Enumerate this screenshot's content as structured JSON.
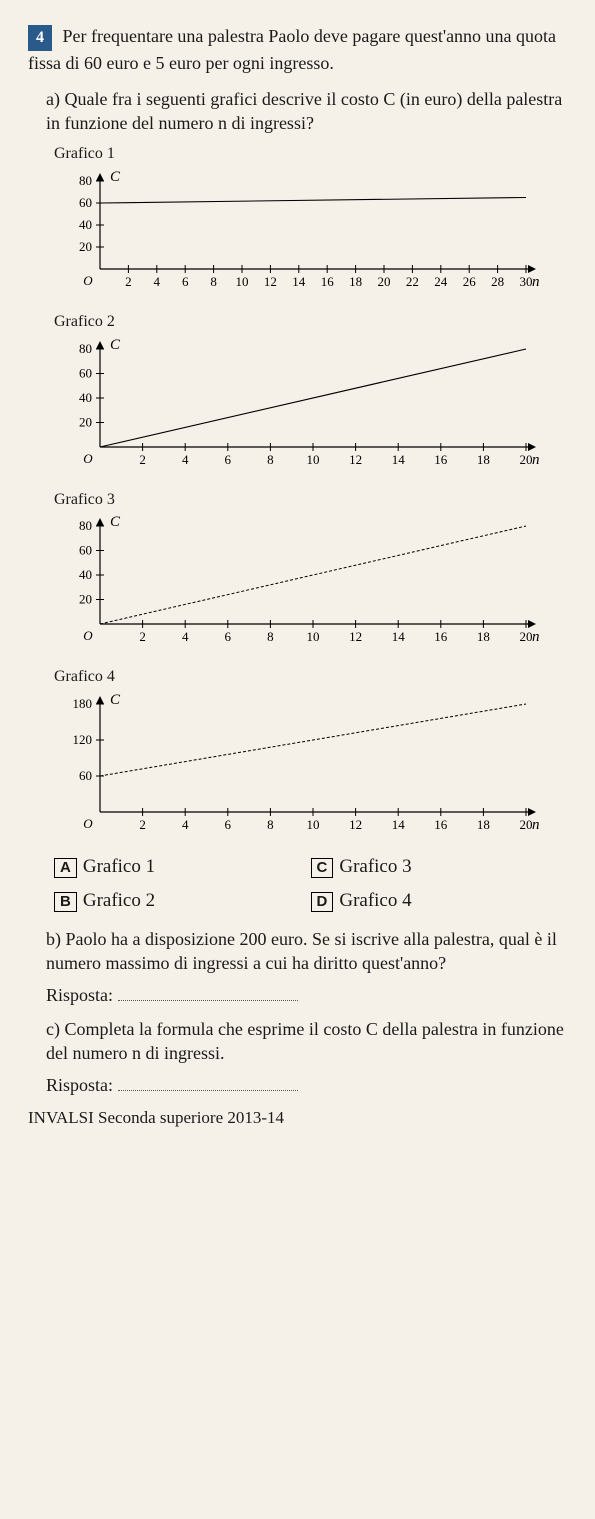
{
  "question_number": "4",
  "intro_text": "Per frequentare una palestra Paolo deve pagare quest'anno una quota fissa di 60 euro e 5 euro per ogni ingresso.",
  "part_a": {
    "label": "a)",
    "text": "Quale fra i seguenti grafici descrive il costo C (in euro) della palestra in funzione del numero n di ingressi?"
  },
  "charts": {
    "axis_color": "#000000",
    "background": "#f5f0e8",
    "y_label": "C",
    "x_label": "n",
    "chart1": {
      "title": "Grafico 1",
      "xlim": [
        0,
        30
      ],
      "xtick_step": 2,
      "ylim": [
        0,
        80
      ],
      "ytick_step": 20,
      "y_ticks": [
        20,
        40,
        60,
        80
      ],
      "line": {
        "x1": 0,
        "y1": 60,
        "x2": 30,
        "y2": 65,
        "style": "solid"
      }
    },
    "chart2": {
      "title": "Grafico 2",
      "xlim": [
        0,
        20
      ],
      "xtick_step": 2,
      "ylim": [
        0,
        80
      ],
      "ytick_step": 20,
      "y_ticks": [
        20,
        40,
        60,
        80
      ],
      "line": {
        "x1": 0,
        "y1": 0,
        "x2": 20,
        "y2": 80,
        "style": "solid"
      }
    },
    "chart3": {
      "title": "Grafico 3",
      "xlim": [
        0,
        20
      ],
      "xtick_step": 2,
      "ylim": [
        0,
        80
      ],
      "ytick_step": 20,
      "y_ticks": [
        20,
        40,
        60,
        80
      ],
      "line": {
        "x1": 0,
        "y1": 0,
        "x2": 20,
        "y2": 80,
        "style": "dashed"
      }
    },
    "chart4": {
      "title": "Grafico 4",
      "xlim": [
        0,
        20
      ],
      "xtick_step": 2,
      "ylim": [
        0,
        180
      ],
      "ytick_step": 60,
      "y_ticks": [
        60,
        120,
        180
      ],
      "line": {
        "x1": 0,
        "y1": 60,
        "x2": 20,
        "y2": 180,
        "style": "dashed"
      }
    }
  },
  "options": {
    "A": "Grafico 1",
    "B": "Grafico 2",
    "C": "Grafico 3",
    "D": "Grafico 4"
  },
  "part_b": {
    "label": "b)",
    "text": "Paolo ha a disposizione 200 euro. Se si iscrive alla palestra, qual è il numero massimo di ingressi a cui ha diritto quest'anno?",
    "answer_label": "Risposta:"
  },
  "part_c": {
    "label": "c)",
    "text": "Completa la formula che esprime il costo C della palestra in funzione del numero n di ingressi.",
    "answer_label": "Risposta:"
  },
  "footer": "INVALSI Seconda superiore 2013-14"
}
